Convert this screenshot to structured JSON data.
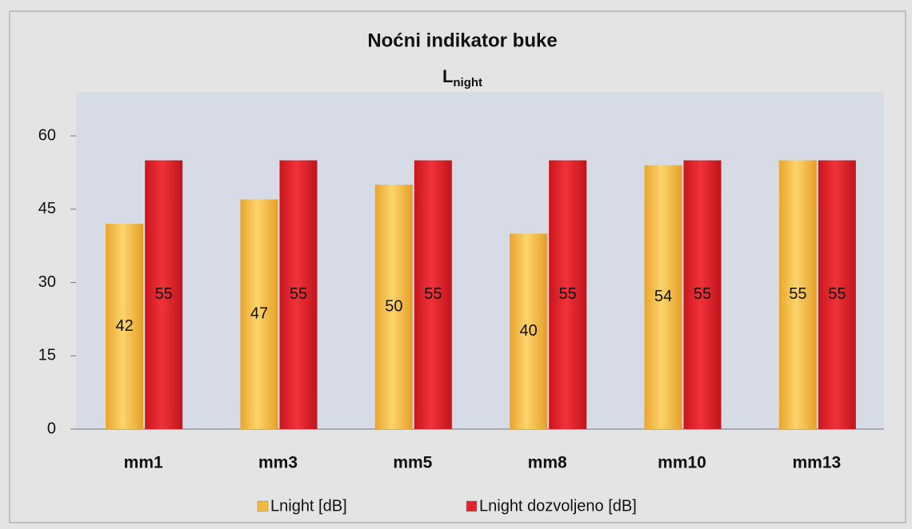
{
  "chart_data": {
    "type": "bar",
    "title": "Noćni indikator buke",
    "subtitle_base": "L",
    "subtitle_subscript": "night",
    "categories": [
      "mm1",
      "mm3",
      "mm5",
      "mm8",
      "mm10",
      "mm13"
    ],
    "series": [
      {
        "name": "Lnight [dB]",
        "color": "#f4b73f",
        "values": [
          42,
          47,
          50,
          40,
          54,
          55
        ]
      },
      {
        "name": "Lnight dozvoljeno [dB]",
        "color": "#e3222b",
        "values": [
          55,
          55,
          55,
          55,
          55,
          55
        ]
      }
    ],
    "ylim": [
      0,
      69
    ],
    "yticks": [
      0,
      15,
      30,
      45,
      60
    ],
    "legend": "bottom"
  }
}
